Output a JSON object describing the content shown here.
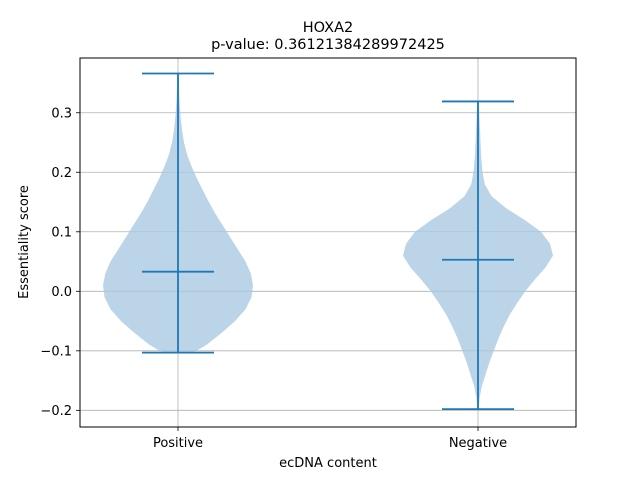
{
  "chart_data": {
    "type": "violin",
    "title": "HOXA2",
    "subtitle": "p-value: 0.36121384289972425",
    "xlabel": "ecDNA content",
    "ylabel": "Essentiality score",
    "categories": [
      "Positive",
      "Negative"
    ],
    "ylim": [
      -0.228,
      0.392
    ],
    "yticks": [
      -0.2,
      -0.1,
      0.0,
      0.1,
      0.2,
      0.3
    ],
    "ytick_labels": [
      "−0.2",
      "−0.1",
      "0.0",
      "0.1",
      "0.2",
      "0.3"
    ],
    "grid": true,
    "colors": {
      "body": "#a9c8e2",
      "line": "#1f77b4"
    },
    "violins": [
      {
        "name": "Positive",
        "min": -0.103,
        "max": 0.366,
        "median": 0.033,
        "density_profile": [
          [
            -0.103,
            0.2
          ],
          [
            -0.09,
            0.38
          ],
          [
            -0.07,
            0.58
          ],
          [
            -0.05,
            0.76
          ],
          [
            -0.03,
            0.9
          ],
          [
            -0.01,
            0.98
          ],
          [
            0.01,
            1.0
          ],
          [
            0.03,
            0.97
          ],
          [
            0.05,
            0.9
          ],
          [
            0.07,
            0.8
          ],
          [
            0.09,
            0.7
          ],
          [
            0.11,
            0.6
          ],
          [
            0.13,
            0.5
          ],
          [
            0.15,
            0.41
          ],
          [
            0.17,
            0.33
          ],
          [
            0.19,
            0.25
          ],
          [
            0.21,
            0.18
          ],
          [
            0.23,
            0.12
          ],
          [
            0.25,
            0.08
          ],
          [
            0.27,
            0.055
          ],
          [
            0.29,
            0.038
          ],
          [
            0.31,
            0.026
          ],
          [
            0.33,
            0.018
          ],
          [
            0.35,
            0.013
          ],
          [
            0.366,
            0.01
          ]
        ]
      },
      {
        "name": "Negative",
        "min": -0.198,
        "max": 0.319,
        "median": 0.053,
        "density_profile": [
          [
            -0.198,
            0.012
          ],
          [
            -0.18,
            0.02
          ],
          [
            -0.16,
            0.05
          ],
          [
            -0.14,
            0.1
          ],
          [
            -0.12,
            0.15
          ],
          [
            -0.1,
            0.21
          ],
          [
            -0.08,
            0.27
          ],
          [
            -0.06,
            0.34
          ],
          [
            -0.04,
            0.42
          ],
          [
            -0.02,
            0.52
          ],
          [
            0.0,
            0.63
          ],
          [
            0.02,
            0.76
          ],
          [
            0.04,
            0.9
          ],
          [
            0.06,
            1.0
          ],
          [
            0.08,
            0.96
          ],
          [
            0.1,
            0.84
          ],
          [
            0.12,
            0.62
          ],
          [
            0.14,
            0.37
          ],
          [
            0.16,
            0.18
          ],
          [
            0.18,
            0.09
          ],
          [
            0.2,
            0.06
          ],
          [
            0.23,
            0.04
          ],
          [
            0.26,
            0.03
          ],
          [
            0.29,
            0.02
          ],
          [
            0.319,
            0.012
          ]
        ]
      }
    ]
  }
}
